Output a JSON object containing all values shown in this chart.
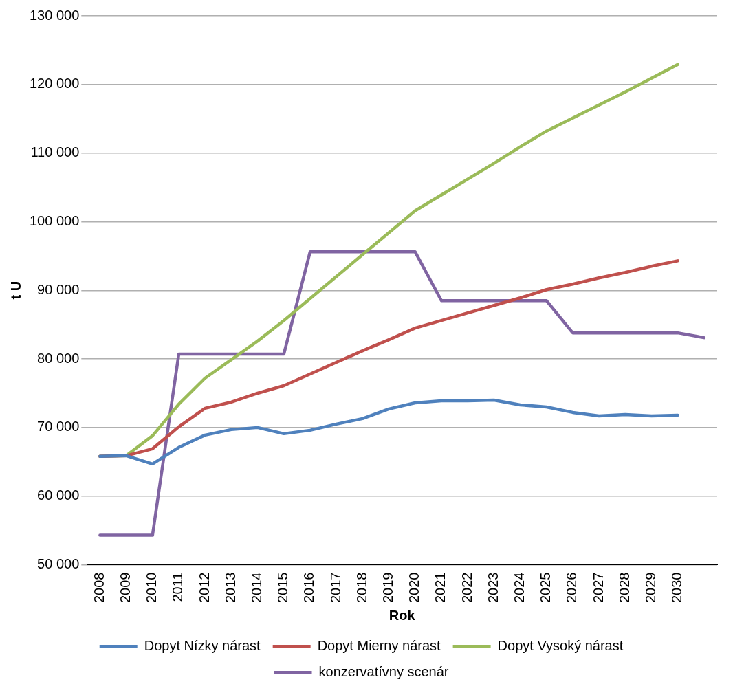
{
  "chart_data": {
    "type": "line",
    "xlabel": "Rok",
    "ylabel": "t U",
    "categories": [
      "2008",
      "2009",
      "2010",
      "2011",
      "2012",
      "2013",
      "2014",
      "2015",
      "2016",
      "2017",
      "2018",
      "2019",
      "2020",
      "2021",
      "2022",
      "2023",
      "2024",
      "2025",
      "2026",
      "2027",
      "2028",
      "2029",
      "2030",
      null
    ],
    "series": [
      {
        "name": "Dopyt Nízky nárast",
        "color": "#4f81bd",
        "values": [
          65800,
          65900,
          64700,
          67100,
          68900,
          69700,
          70000,
          69100,
          69600,
          70500,
          71300,
          72700,
          73600,
          73900,
          73900,
          74000,
          73300,
          73000,
          72200,
          71700,
          71900,
          71700,
          71800,
          null
        ]
      },
      {
        "name": "Dopyt Mierny nárast",
        "color": "#c0504d",
        "values": [
          65800,
          65900,
          66900,
          70100,
          72800,
          73700,
          75000,
          76100,
          77800,
          79500,
          81200,
          82800,
          84500,
          85600,
          86700,
          87800,
          88900,
          90100,
          90900,
          91800,
          92600,
          93500,
          94300,
          null
        ]
      },
      {
        "name": "Dopyt Vysoký nárast",
        "color": "#9bbb59",
        "values": [
          65800,
          65900,
          68800,
          73400,
          77200,
          79900,
          82600,
          85600,
          88800,
          92000,
          95200,
          98400,
          101600,
          103900,
          106200,
          108500,
          110900,
          113200,
          115100,
          117000,
          118900,
          120900,
          122900,
          null
        ]
      },
      {
        "name": "konzervatívny scenár",
        "color": "#8064a2",
        "values": [
          54300,
          54300,
          54300,
          80700,
          80700,
          80700,
          80700,
          80700,
          95600,
          95600,
          95600,
          95600,
          95600,
          88500,
          88500,
          88500,
          88500,
          88500,
          83800,
          83800,
          83800,
          83800,
          83800,
          83100
        ]
      }
    ],
    "ylim": [
      50000,
      130000
    ],
    "yticks": [
      {
        "value": 50000,
        "label": "50 000"
      },
      {
        "value": 60000,
        "label": "60 000"
      },
      {
        "value": 70000,
        "label": "70 000"
      },
      {
        "value": 80000,
        "label": "80 000"
      },
      {
        "value": 90000,
        "label": "90 000"
      },
      {
        "value": 100000,
        "label": "100 000"
      },
      {
        "value": 110000,
        "label": "110 000"
      },
      {
        "value": 120000,
        "label": "120 000"
      },
      {
        "value": 130000,
        "label": "130 000"
      }
    ],
    "grid": "y",
    "legend": "bottom",
    "marker": "none",
    "line_style": "solid"
  }
}
